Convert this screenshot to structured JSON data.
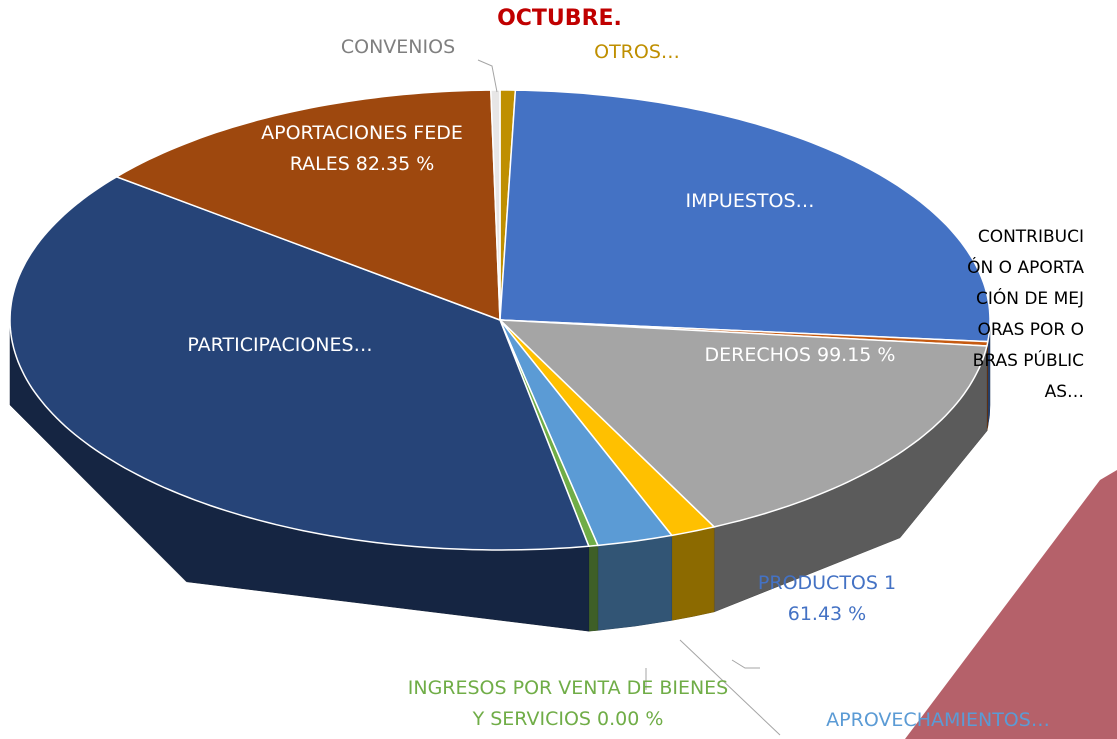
{
  "chart_data": {
    "type": "pie3d",
    "title": "OCTUBRE.",
    "categories": [
      "OTROS…",
      "IMPUESTOS…",
      "CONTRIBUCIÓN O APORTACIÓN DE MEJORAS POR OBRAS PÚBLICAS…",
      "DERECHOS 99.15 %",
      "PRODUCTOS 161.43 %",
      "APROVECHAMIENTOS…",
      "INGRESOS POR VENTA DE BIENES Y SERVICIOS 0.00 %",
      "PARTICIPACIONES…",
      "APORTACIONES FEDERALES 82.35 %",
      "CONVENIOS"
    ],
    "values": [
      0.5,
      26,
      0.3,
      16,
      1.5,
      2.5,
      0.3,
      38.6,
      14,
      0.3
    ],
    "colors": [
      "#bf8f00",
      "#4472c4",
      "#c55a11",
      "#a5a5a5",
      "#ffc000",
      "#5b9bd5",
      "#70ad47",
      "#264478",
      "#9e480e",
      "#e7e6e6"
    ]
  }
}
